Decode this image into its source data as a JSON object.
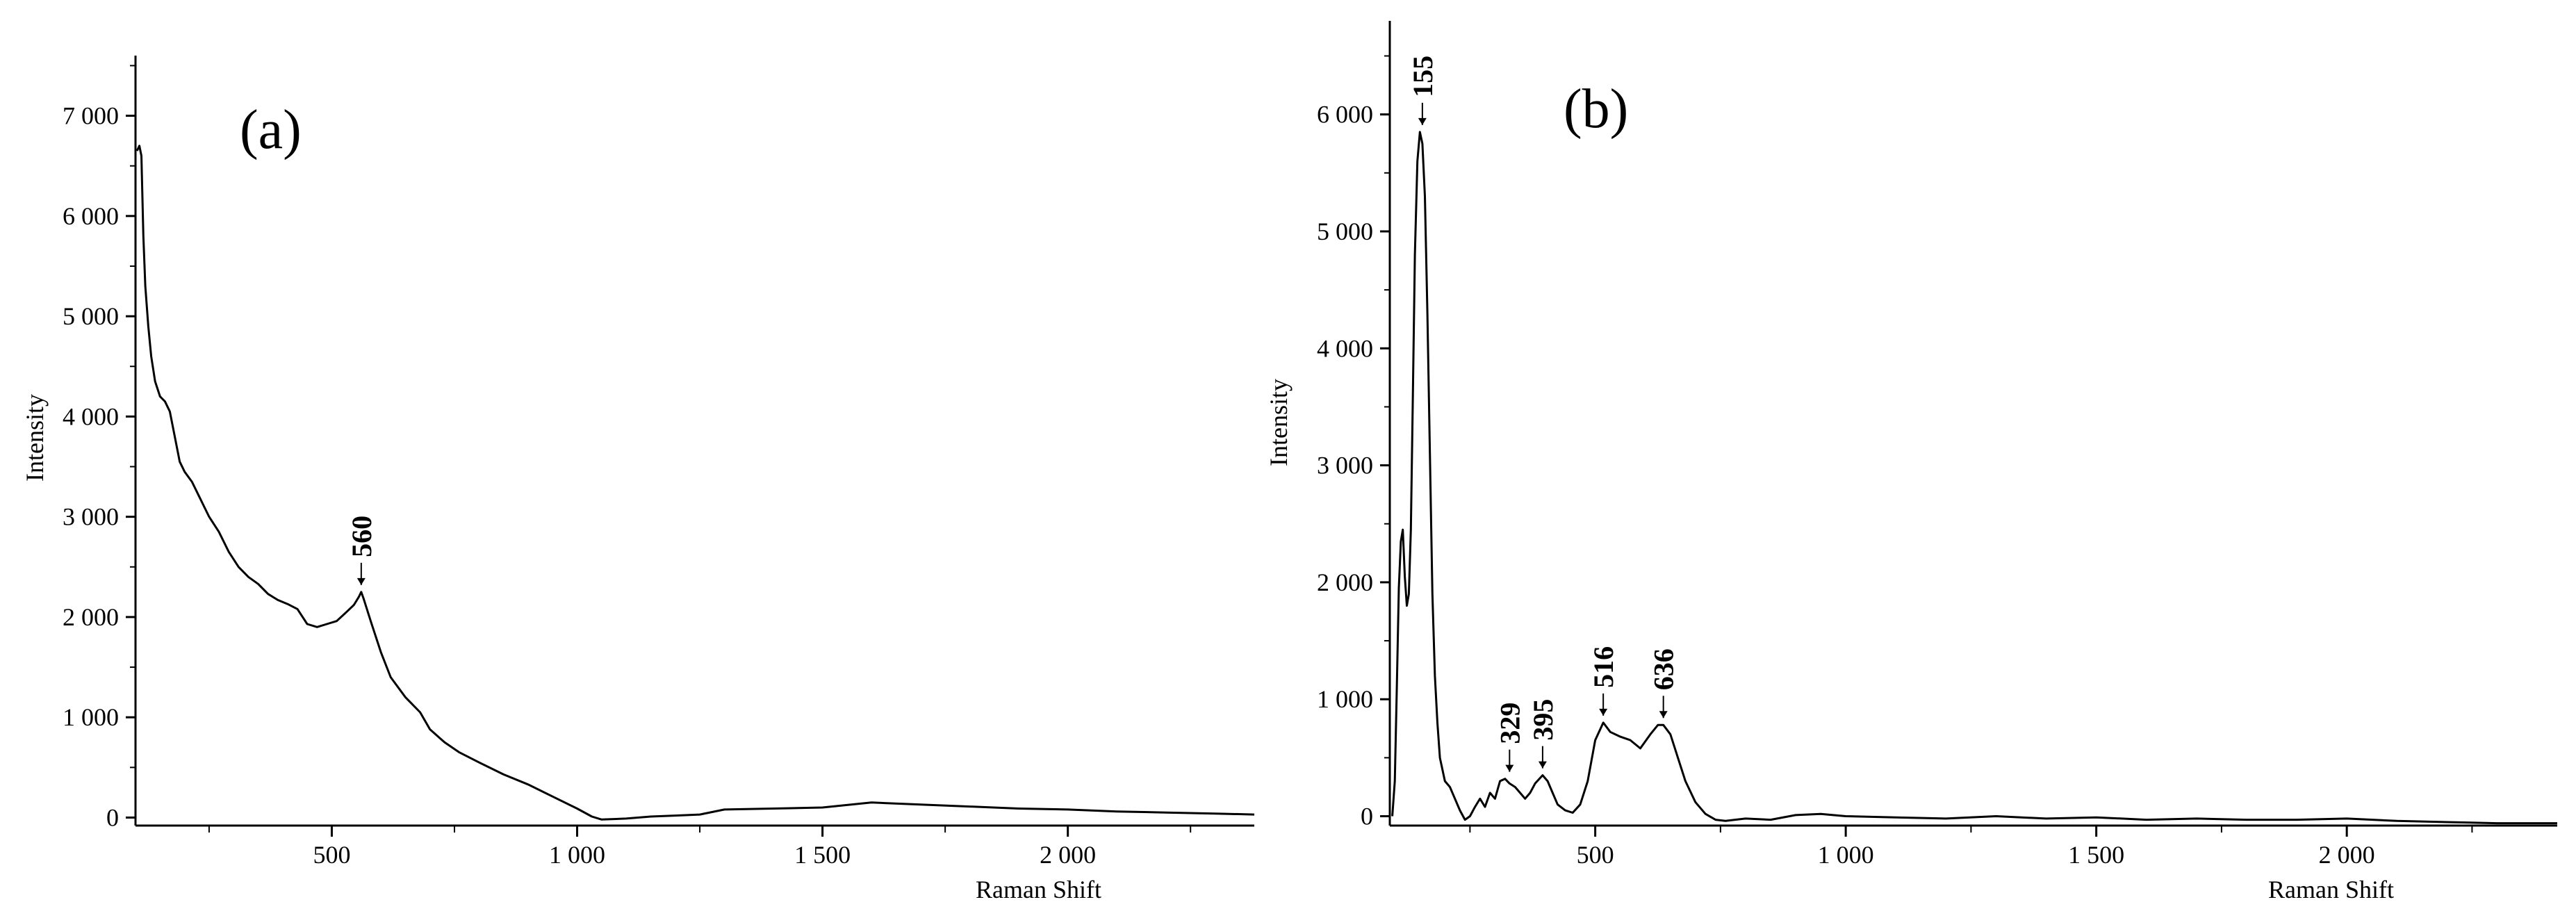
{
  "chart_data": [
    {
      "type": "line",
      "panel_label": "(a)",
      "xlabel": "Raman Shift",
      "ylabel": "Intensity",
      "xlim": [
        100,
        2380
      ],
      "ylim": [
        -80,
        7600
      ],
      "x_ticks": [
        500,
        1000,
        1500,
        2000
      ],
      "x_tick_labels": [
        "500",
        "1 000",
        "1 500",
        "2 000"
      ],
      "y_ticks": [
        0,
        1000,
        2000,
        3000,
        4000,
        5000,
        6000,
        7000
      ],
      "y_tick_labels": [
        "0",
        "1 000",
        "2 000",
        "3 000",
        "4 000",
        "5 000",
        "6 000",
        "7 000"
      ],
      "series": [
        {
          "x": [
            103,
            108,
            112,
            116,
            120,
            126,
            132,
            140,
            150,
            160,
            170,
            180,
            190,
            200,
            215,
            230,
            250,
            270,
            290,
            310,
            330,
            350,
            370,
            390,
            410,
            430,
            450,
            470,
            490,
            510,
            530,
            545,
            555,
            560,
            565,
            580,
            600,
            620,
            650,
            680,
            700,
            730,
            760,
            800,
            850,
            900,
            950,
            1000,
            1030,
            1050,
            1100,
            1150,
            1200,
            1250,
            1300,
            1400,
            1500,
            1600,
            1700,
            1800,
            1900,
            2000,
            2100,
            2200,
            2300,
            2380
          ],
          "y": [
            6650,
            6700,
            6600,
            5800,
            5300,
            4900,
            4600,
            4350,
            4200,
            4150,
            4050,
            3800,
            3550,
            3450,
            3350,
            3200,
            3000,
            2850,
            2650,
            2500,
            2400,
            2330,
            2230,
            2170,
            2130,
            2080,
            1930,
            1900,
            1930,
            1960,
            2050,
            2120,
            2200,
            2250,
            2180,
            1950,
            1650,
            1400,
            1200,
            1050,
            880,
            750,
            650,
            550,
            430,
            330,
            210,
            90,
            10,
            -20,
            -10,
            10,
            20,
            30,
            80,
            90,
            100,
            150,
            130,
            110,
            90,
            80,
            60,
            50,
            40,
            30
          ]
        }
      ],
      "peak_labels": [
        {
          "text": "560",
          "x": 560,
          "y": 2250
        }
      ]
    },
    {
      "type": "line",
      "panel_label": "(b)",
      "xlabel": "Raman Shift",
      "ylabel": "Intensity",
      "xlim": [
        90,
        2420
      ],
      "ylim": [
        -80,
        6800
      ],
      "x_ticks": [
        500,
        1000,
        1500,
        2000
      ],
      "x_tick_labels": [
        "500",
        "1 000",
        "1 500",
        "2 000"
      ],
      "y_ticks": [
        0,
        1000,
        2000,
        3000,
        4000,
        5000,
        6000
      ],
      "y_tick_labels": [
        "0",
        "1 000",
        "2 000",
        "3 000",
        "4 000",
        "5 000",
        "6 000"
      ],
      "series": [
        {
          "x": [
            95,
            100,
            104,
            108,
            112,
            116,
            120,
            124,
            128,
            132,
            136,
            140,
            145,
            150,
            155,
            160,
            165,
            170,
            175,
            180,
            185,
            190,
            200,
            210,
            220,
            230,
            240,
            250,
            260,
            270,
            280,
            290,
            300,
            310,
            320,
            329,
            340,
            350,
            360,
            370,
            380,
            395,
            405,
            415,
            425,
            440,
            455,
            470,
            485,
            500,
            516,
            530,
            550,
            570,
            590,
            610,
            625,
            636,
            650,
            665,
            680,
            700,
            720,
            740,
            760,
            800,
            850,
            900,
            950,
            1000,
            1100,
            1200,
            1300,
            1400,
            1500,
            1600,
            1700,
            1800,
            1900,
            2000,
            2100,
            2200,
            2300,
            2420
          ],
          "y": [
            0,
            300,
            1100,
            1950,
            2350,
            2450,
            2050,
            1800,
            1900,
            2450,
            3600,
            4800,
            5600,
            5850,
            5750,
            5300,
            4300,
            3100,
            1900,
            1200,
            800,
            500,
            300,
            250,
            150,
            50,
            -30,
            0,
            80,
            150,
            80,
            200,
            150,
            300,
            320,
            280,
            250,
            200,
            150,
            200,
            280,
            350,
            300,
            200,
            100,
            50,
            30,
            100,
            300,
            650,
            800,
            720,
            680,
            650,
            580,
            700,
            780,
            780,
            700,
            500,
            300,
            120,
            20,
            -30,
            -40,
            -20,
            -30,
            10,
            20,
            0,
            -10,
            -20,
            0,
            -20,
            -10,
            -30,
            -20,
            -30,
            -30,
            -20,
            -40,
            -50,
            -60,
            -60
          ]
        }
      ],
      "peak_labels": [
        {
          "text": "155",
          "x": 155,
          "y": 5850
        },
        {
          "text": "329",
          "x": 329,
          "y": 320
        },
        {
          "text": "395",
          "x": 395,
          "y": 350
        },
        {
          "text": "516",
          "x": 516,
          "y": 800
        },
        {
          "text": "636",
          "x": 636,
          "y": 780
        }
      ]
    }
  ]
}
